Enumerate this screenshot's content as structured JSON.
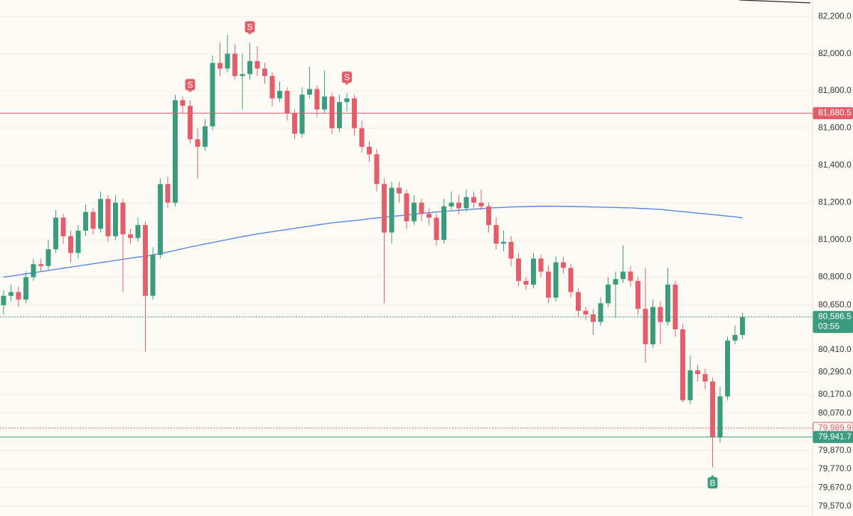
{
  "chart_data": {
    "type": "candlestick",
    "candles": {
      "open": [
        80650,
        80700,
        80720,
        80680,
        80800,
        80870,
        80860,
        80950,
        81120,
        81020,
        80930,
        81050,
        81150,
        81060,
        81220,
        81020,
        81200,
        81030,
        81010,
        81080,
        80700,
        80920,
        81300,
        81200,
        81750,
        81720,
        81540,
        81500,
        81610,
        81950,
        81920,
        82000,
        81880,
        81890,
        81960,
        81920,
        81880,
        81760,
        81800,
        81680,
        81570,
        81780,
        81810,
        81700,
        81770,
        81600,
        81740,
        81760,
        81600,
        81500,
        81460,
        81300,
        81040,
        81280,
        81250,
        81100,
        81200,
        81140,
        81120,
        81000,
        81180,
        81200,
        81170,
        81230,
        81200,
        81180,
        81080,
        80980,
        80990,
        80900,
        80780,
        80760,
        80900,
        80830,
        80690,
        80880,
        80850,
        80720,
        80620,
        80600,
        80560,
        80660,
        80760,
        80790,
        80830,
        80780,
        80630,
        80440,
        80640,
        80560,
        80760,
        80520,
        80140,
        80300,
        80280,
        80240,
        79940,
        80160,
        80460,
        80490
      ],
      "high": [
        80730,
        80760,
        80750,
        80830,
        80900,
        80900,
        81000,
        81160,
        81140,
        81050,
        81080,
        81190,
        81170,
        81260,
        81240,
        81240,
        81220,
        81060,
        81120,
        81100,
        80960,
        81330,
        81340,
        81780,
        81770,
        81750,
        81600,
        81650,
        81990,
        82060,
        82100,
        82050,
        82000,
        82060,
        82040,
        81950,
        81900,
        81850,
        81820,
        81700,
        81820,
        81930,
        81830,
        81910,
        81790,
        81780,
        81790,
        81780,
        81640,
        81530,
        81490,
        81330,
        81310,
        81310,
        81270,
        81240,
        81220,
        81170,
        81140,
        81220,
        81260,
        81240,
        81270,
        81260,
        81270,
        81200,
        81120,
        81050,
        81020,
        80930,
        80800,
        80930,
        80920,
        80860,
        80910,
        80910,
        80870,
        80740,
        80640,
        80630,
        80690,
        80800,
        80830,
        80970,
        80860,
        80800,
        80850,
        80680,
        80670,
        80850,
        80780,
        80550,
        80380,
        80330,
        80310,
        80260,
        80210,
        80480,
        80540,
        80610
      ],
      "low": [
        80600,
        80670,
        80640,
        80660,
        80780,
        80830,
        80840,
        80930,
        80980,
        80880,
        80900,
        81020,
        81030,
        81040,
        80990,
        81000,
        80720,
        80980,
        80990,
        80400,
        80680,
        80900,
        81170,
        81180,
        81680,
        81520,
        81330,
        81480,
        81590,
        81880,
        81900,
        81860,
        81700,
        81860,
        81880,
        81840,
        81720,
        81740,
        81640,
        81540,
        81550,
        81760,
        81660,
        81680,
        81570,
        81580,
        81690,
        81560,
        81470,
        81420,
        81260,
        80660,
        80980,
        81200,
        81060,
        81080,
        81100,
        81080,
        80970,
        80980,
        81160,
        81140,
        81150,
        81170,
        81160,
        81040,
        80950,
        80940,
        80860,
        80750,
        80730,
        80740,
        80800,
        80660,
        80670,
        80820,
        80690,
        80590,
        80570,
        80490,
        80540,
        80640,
        80580,
        80770,
        80750,
        80600,
        80340,
        80420,
        80440,
        80540,
        80480,
        80130,
        80120,
        80240,
        80200,
        79780,
        79910,
        80140,
        80440,
        80470
      ],
      "close": [
        80700,
        80720,
        80680,
        80800,
        80870,
        80860,
        80950,
        81120,
        81020,
        80930,
        81050,
        81150,
        81060,
        81220,
        81020,
        81200,
        81030,
        81010,
        81080,
        80700,
        80920,
        81300,
        81200,
        81750,
        81720,
        81540,
        81500,
        81610,
        81950,
        81920,
        82000,
        81880,
        81890,
        81960,
        81920,
        81880,
        81760,
        81800,
        81680,
        81570,
        81780,
        81810,
        81700,
        81770,
        81600,
        81740,
        81760,
        81600,
        81500,
        81460,
        81300,
        81040,
        81280,
        81250,
        81100,
        81200,
        81140,
        81120,
        81000,
        81180,
        81200,
        81170,
        81230,
        81200,
        81180,
        81080,
        80980,
        80990,
        80900,
        80780,
        80760,
        80900,
        80830,
        80690,
        80880,
        80850,
        80720,
        80620,
        80600,
        80560,
        80660,
        80760,
        80790,
        80830,
        80780,
        80630,
        80440,
        80640,
        80560,
        80760,
        80520,
        80140,
        80300,
        80280,
        80240,
        79940,
        80160,
        80460,
        80490,
        80586.5
      ],
      "up_color": "#3b9c7d",
      "down_color": "#e35d6a"
    },
    "moving_average": {
      "color": "#4a7ee0",
      "values": [
        80800,
        80806,
        80812,
        80818,
        80824,
        80830,
        80836,
        80842,
        80848,
        80854,
        80860,
        80866,
        80872,
        80878,
        80884,
        80890,
        80896,
        80902,
        80908,
        80912,
        80920,
        80926,
        80935,
        80944,
        80953,
        80962,
        80970,
        80978,
        80986,
        80994,
        81002,
        81010,
        81018,
        81025,
        81032,
        81038,
        81044,
        81050,
        81056,
        81062,
        81068,
        81074,
        81080,
        81086,
        81092,
        81096,
        81100,
        81104,
        81108,
        81114,
        81118,
        81122,
        81126,
        81130,
        81134,
        81138,
        81142,
        81146,
        81150,
        81153,
        81156,
        81159,
        81162,
        81165,
        81168,
        81171,
        81173,
        81175,
        81177,
        81178,
        81179,
        81180,
        81181,
        81181,
        81181,
        81180,
        81180,
        81179,
        81178,
        81177,
        81176,
        81175,
        81174,
        81173,
        81172,
        81170,
        81168,
        81166,
        81164,
        81160,
        81156,
        81152,
        81148,
        81144,
        81140,
        81136,
        81132,
        81128,
        81124,
        81118
      ]
    },
    "signals": [
      {
        "label": "S",
        "candle": 25,
        "color": "#e35d6a",
        "place": "above"
      },
      {
        "label": "S",
        "candle": 33,
        "color": "#e35d6a",
        "place": "above"
      },
      {
        "label": "S",
        "candle": 46,
        "color": "#e35d6a",
        "place": "above"
      },
      {
        "label": "B",
        "candle": 95,
        "color": "#3b9c7d",
        "place": "below"
      }
    ],
    "price_lines": [
      {
        "value": 81680.5,
        "label": "81,680.5",
        "color": "#e35d6a",
        "style": "solid",
        "box": "filled"
      },
      {
        "value": 80586.5,
        "label": "80,586.5",
        "color": "#3b9c7d",
        "style": "dotted",
        "box": "filled",
        "countdown": "03:55"
      },
      {
        "value": 79989.9,
        "label": "79,989.9",
        "color": "#e35d6a",
        "style": "dotted",
        "box": "outline"
      },
      {
        "value": 79941.7,
        "label": "79,941.7",
        "color": "#3b9c7d",
        "style": "solid",
        "box": "filled"
      }
    ],
    "ylim": [
      79518,
      82288
    ],
    "yticks": [
      {
        "value": 82200,
        "label": "82,200.0"
      },
      {
        "value": 82000,
        "label": "82,000.0"
      },
      {
        "value": 81800,
        "label": "81,800.0"
      },
      {
        "value": 81600,
        "label": "81,600.0"
      },
      {
        "value": 81400,
        "label": "81,400.0"
      },
      {
        "value": 81200,
        "label": "81,200.0"
      },
      {
        "value": 81000,
        "label": "81,000.0"
      },
      {
        "value": 80800,
        "label": "80,800.0"
      },
      {
        "value": 80650,
        "label": "80,650.0"
      },
      {
        "value": 80410,
        "label": "80,410.0"
      },
      {
        "value": 80290,
        "label": "80,290.0"
      },
      {
        "value": 80170,
        "label": "80,170.0"
      },
      {
        "value": 80070,
        "label": "80,070.0"
      },
      {
        "value": 79870,
        "label": "79,870.0"
      },
      {
        "value": 79770,
        "label": "79,770.0"
      },
      {
        "value": 79670,
        "label": "79,670.0"
      },
      {
        "value": 79570,
        "label": "79,570.0"
      }
    ],
    "grid": true
  }
}
